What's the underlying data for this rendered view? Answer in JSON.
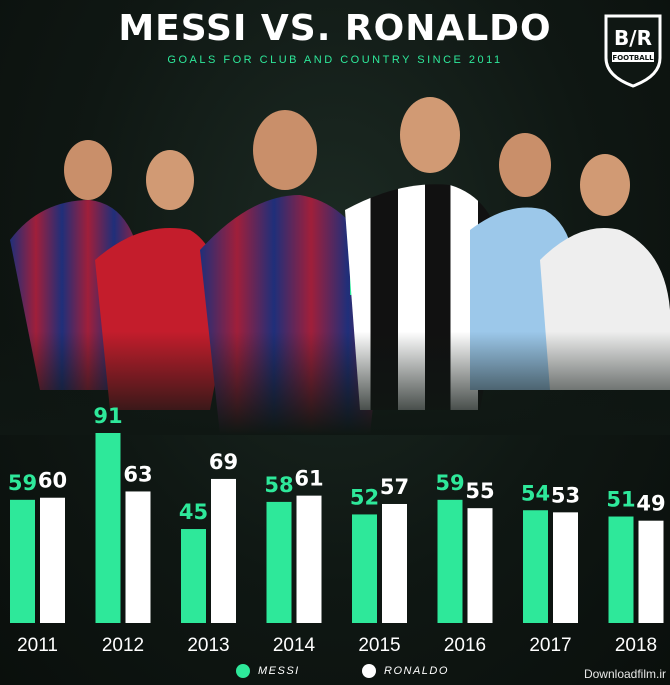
{
  "header": {
    "title": "MESSI VS. RONALDO",
    "subtitle": "GOALS FOR CLUB AND COUNTRY SINCE 2011",
    "logo_text": "B/R",
    "logo_sub": "FOOTBALL"
  },
  "colors": {
    "messi": "#2ee89a",
    "ronaldo": "#ffffff",
    "accent": "#2ee89a",
    "background": "#0f1713"
  },
  "chart_data": {
    "type": "bar",
    "title": "MESSI VS. RONALDO",
    "subtitle": "GOALS FOR CLUB AND COUNTRY SINCE 2011",
    "categories": [
      "2011",
      "2012",
      "2013",
      "2014",
      "2015",
      "2016",
      "2017",
      "2018"
    ],
    "series": [
      {
        "name": "MESSI",
        "values": [
          59,
          91,
          45,
          58,
          52,
          59,
          54,
          51
        ]
      },
      {
        "name": "RONALDO",
        "values": [
          60,
          63,
          69,
          61,
          57,
          55,
          53,
          49
        ]
      }
    ],
    "ylim": [
      0,
      91
    ],
    "grid": false,
    "legend_position": "bottom-center"
  },
  "legend": {
    "messi_label": "MESSI",
    "ronaldo_label": "RONALDO"
  },
  "watermark": "Downloadfilm.ir"
}
